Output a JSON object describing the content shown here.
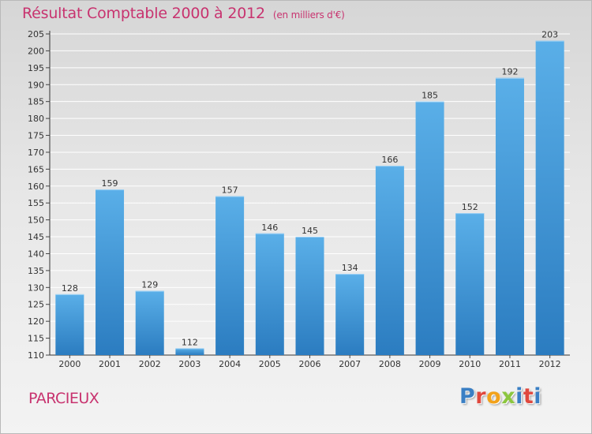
{
  "title": "Résultat Comptable 2000 à 2012",
  "subtitle": "(en milliers d'€)",
  "place": "PARCIEUX",
  "logo": {
    "letters": [
      "P",
      "r",
      "o",
      "x",
      "i",
      "t",
      "i"
    ],
    "colors": [
      "#3a7fc4",
      "#e0483e",
      "#f2a21b",
      "#8cc63f",
      "#3a7fc4",
      "#e0483e",
      "#3a7fc4"
    ]
  },
  "colors": {
    "bar_light": "#5aafe8",
    "bar_dark": "#2b7cc0",
    "title": "#c8336f"
  },
  "chart_data": {
    "type": "bar",
    "categories": [
      "2000",
      "2001",
      "2002",
      "2003",
      "2004",
      "2005",
      "2006",
      "2007",
      "2008",
      "2009",
      "2010",
      "2011",
      "2012"
    ],
    "values": [
      128,
      159,
      129,
      112,
      157,
      146,
      145,
      134,
      166,
      185,
      152,
      192,
      203
    ],
    "ylim": [
      110,
      205
    ],
    "yticks": [
      110,
      115,
      120,
      125,
      130,
      135,
      140,
      145,
      150,
      155,
      160,
      165,
      170,
      175,
      180,
      185,
      190,
      195,
      200,
      205
    ],
    "grid": true,
    "title": "Résultat Comptable 2000 à 2012",
    "xlabel": "",
    "ylabel": ""
  }
}
